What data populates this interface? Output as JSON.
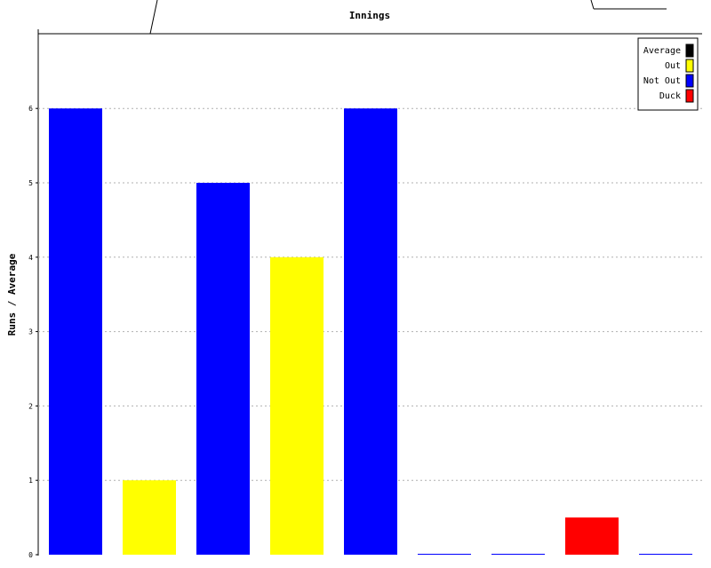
{
  "chart_data": {
    "type": "bar",
    "title": "Innings",
    "xlabel": "",
    "ylabel": "Runs / Average",
    "ylim": [
      0,
      7
    ],
    "yticks": [
      0,
      1,
      2,
      3,
      4,
      5,
      6
    ],
    "grid": true,
    "legend_position": "top-right",
    "legend": [
      {
        "label": "Average",
        "color": "#000000"
      },
      {
        "label": "Out",
        "color": "#ffff00"
      },
      {
        "label": "Not Out",
        "color": "#0000ff"
      },
      {
        "label": "Duck",
        "color": "#ff0000"
      }
    ],
    "bars": [
      {
        "value": 6,
        "status": "Not Out"
      },
      {
        "value": 1,
        "status": "Out"
      },
      {
        "value": 5,
        "status": "Not Out"
      },
      {
        "value": 4,
        "status": "Out"
      },
      {
        "value": 6,
        "status": "Not Out"
      },
      {
        "value": 0,
        "status": "Not Out"
      },
      {
        "value": 0,
        "status": "Not Out"
      },
      {
        "value": 0.5,
        "status": "Duck"
      },
      {
        "value": 0,
        "status": "Not Out"
      }
    ]
  }
}
